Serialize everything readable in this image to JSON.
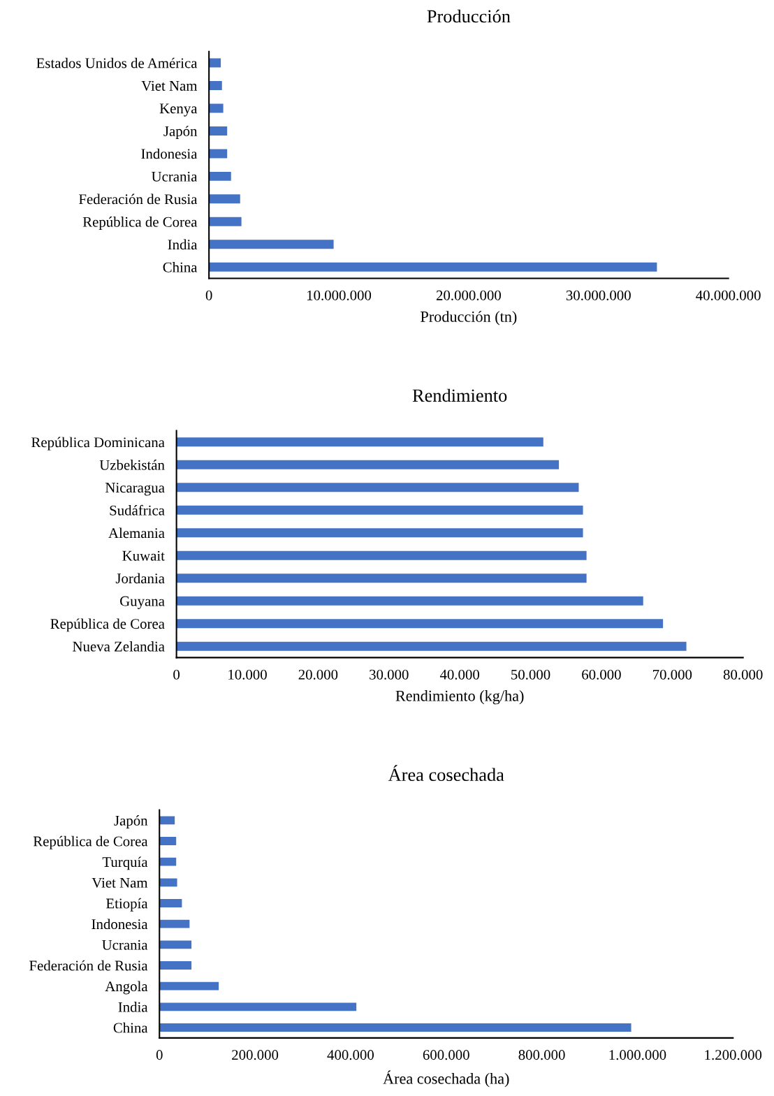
{
  "chart_data": [
    {
      "type": "bar",
      "orientation": "horizontal",
      "title": "Producción",
      "xlabel": "Producción (tn)",
      "categories": [
        "Estados Unidos de América",
        "Viet Nam",
        "Kenya",
        "Japón",
        "Indonesia",
        "Ucrania",
        "Federación de Rusia",
        "República de Corea",
        "India",
        "China"
      ],
      "values": [
        910000,
        1000000,
        1100000,
        1400000,
        1400000,
        1700000,
        2400000,
        2500000,
        9600000,
        34500000
      ],
      "color": "#4472c4",
      "xlim": [
        0,
        40000000
      ],
      "xticks": [
        0,
        {
          "value": 10000000,
          "label": "10.000.000"
        },
        {
          "value": 20000000,
          "label": "20.000.000"
        },
        {
          "value": 30000000,
          "label": "30.000.000"
        },
        {
          "value": 40000000,
          "label": "40.000.000"
        }
      ],
      "grid": false,
      "legend": false
    },
    {
      "type": "bar",
      "orientation": "horizontal",
      "title": "Rendimiento",
      "xlabel": "Rendimiento (kg/ha)",
      "categories": [
        "República Dominicana",
        "Uzbekistán",
        "Nicaragua",
        "Sudáfrica",
        "Alemania",
        "Kuwait",
        "Jordania",
        "Guyana",
        "República de Corea",
        "Nueva Zelandia"
      ],
      "values": [
        51800,
        54000,
        56800,
        57400,
        57400,
        57900,
        57900,
        65900,
        68700,
        72000
      ],
      "color": "#4472c4",
      "xlim": [
        0,
        80000
      ],
      "xticks": [
        0,
        {
          "value": 10000,
          "label": "10.000"
        },
        {
          "value": 20000,
          "label": "20.000"
        },
        {
          "value": 30000,
          "label": "30.000"
        },
        {
          "value": 40000,
          "label": "40.000"
        },
        {
          "value": 50000,
          "label": "50.000"
        },
        {
          "value": 60000,
          "label": "60.000"
        },
        {
          "value": 70000,
          "label": "70.000"
        },
        {
          "value": 80000,
          "label": "80.000"
        }
      ],
      "grid": false,
      "legend": false
    },
    {
      "type": "bar",
      "orientation": "horizontal",
      "title": "Área cosechada",
      "xlabel": "Área cosechada (ha)",
      "categories": [
        "Japón",
        "República de Corea",
        "Turquía",
        "Viet Nam",
        "Etiopía",
        "Indonesia",
        "Ucrania",
        "Federación de Rusia",
        "Angola",
        "India",
        "China"
      ],
      "values": [
        32000,
        35000,
        35000,
        37000,
        47000,
        63000,
        67000,
        67000,
        124000,
        412000,
        987000
      ],
      "color": "#4472c4",
      "xlim": [
        0,
        1200000
      ],
      "xticks": [
        0,
        {
          "value": 200000,
          "label": "200.000"
        },
        {
          "value": 400000,
          "label": "400.000"
        },
        {
          "value": 600000,
          "label": "600.000"
        },
        {
          "value": 800000,
          "label": "800.000"
        },
        {
          "value": 1000000,
          "label": "1.000.000"
        },
        {
          "value": 1200000,
          "label": "1.200.000"
        }
      ],
      "grid": false,
      "legend": false
    }
  ]
}
